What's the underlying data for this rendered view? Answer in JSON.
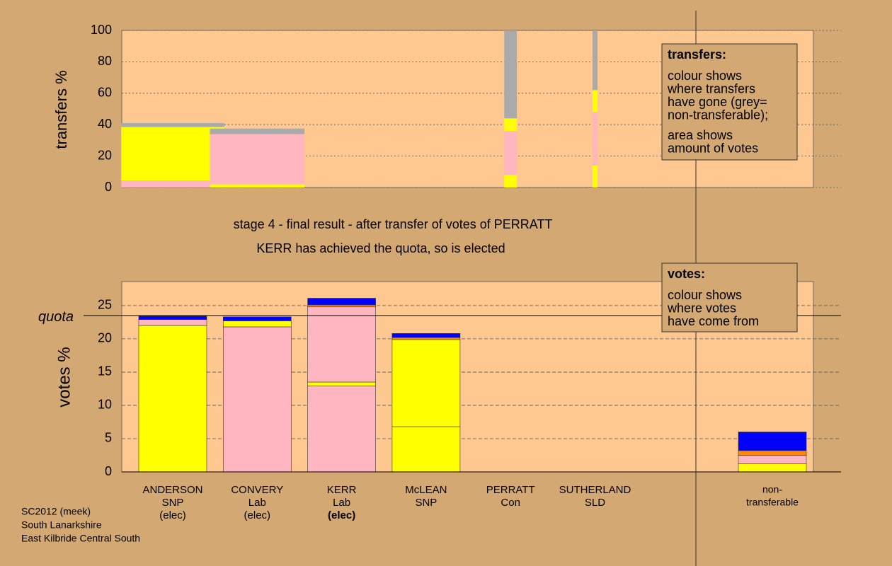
{
  "chart_data": [
    {
      "type": "stacked-bar",
      "ylabel": "transfers %",
      "ylim": [
        0,
        100
      ],
      "yticks": [
        0,
        20,
        40,
        60,
        80,
        100
      ],
      "x": [
        0,
        1,
        4,
        5
      ],
      "widths": [
        1.22,
        1.12,
        0.15,
        0.06
      ],
      "bars": [
        {
          "segments": [
            {
              "color": "#ffb6c1",
              "value": 4.5
            },
            {
              "color": "#ffff00",
              "value": 34
            },
            {
              "color": "#aaaaaa",
              "value": 2.5
            }
          ]
        },
        {
          "segments": [
            {
              "color": "#ffff00",
              "value": 2
            },
            {
              "color": "#ffb6c1",
              "value": 32
            },
            {
              "color": "#aaaaaa",
              "value": 3.5
            }
          ]
        },
        {
          "segments": [
            {
              "color": "#ffff00",
              "value": 8
            },
            {
              "color": "#ffb6c1",
              "value": 28
            },
            {
              "color": "#ffff00",
              "value": 8
            },
            {
              "color": "#aaaaaa",
              "value": 56
            }
          ]
        },
        {
          "segments": [
            {
              "color": "#ffff00",
              "value": 14
            },
            {
              "color": "#ffb6c1",
              "value": 34
            },
            {
              "color": "#ffff00",
              "value": 14
            },
            {
              "color": "#aaaaaa",
              "value": 38
            }
          ]
        }
      ],
      "legend": {
        "title": "transfers:",
        "lines": [
          "colour shows",
          "where transfers",
          "have gone (grey=",
          "non-transferable);"
        ],
        "lines2": [
          "area shows",
          "amount of votes"
        ]
      }
    },
    {
      "type": "stacked-bar",
      "title": "stage 4 - final result - after transfer of votes of PERRATT",
      "subtitle": "KERR has achieved the quota, so is elected",
      "ylabel": "votes %",
      "ylim": [
        0,
        28.6
      ],
      "yticks": [
        0,
        5,
        10,
        15,
        20,
        25
      ],
      "quota": 23.5,
      "quota_label": "quota",
      "categories": [
        [
          "ANDERSON",
          "SNP",
          "(elec)"
        ],
        [
          "CONVERY",
          "Lab",
          "(elec)"
        ],
        [
          "KERR",
          "Lab",
          "(elec)"
        ],
        [
          "McLEAN",
          "SNP"
        ],
        [
          "PERRATT",
          "Con"
        ],
        [
          "SUTHERLAND",
          "SLD"
        ],
        [
          "non-",
          "transferable"
        ]
      ],
      "bars": [
        {
          "segments": [
            {
              "color": "#ffff00",
              "value": 22.0
            },
            {
              "color": "#ffb6c1",
              "value": 0.9
            },
            {
              "color": "#0000ff",
              "value": 0.5
            }
          ]
        },
        {
          "segments": [
            {
              "color": "#ffb6c1",
              "value": 21.8
            },
            {
              "color": "#ffff00",
              "value": 0.9
            },
            {
              "color": "#0000ff",
              "value": 0.6
            }
          ]
        },
        {
          "segments": [
            {
              "color": "#ffb6c1",
              "value": 12.9
            },
            {
              "color": "#ffff00",
              "value": 0.6
            },
            {
              "color": "#ffb6c1",
              "value": 11.3
            },
            {
              "color": "#ff8c00",
              "value": 0.3
            },
            {
              "color": "#0000ff",
              "value": 1.0
            }
          ]
        },
        {
          "segments": [
            {
              "color": "#ffff00",
              "value": 6.8
            },
            {
              "color": "#ffff00",
              "value": 13.1
            },
            {
              "color": "#ff8c00",
              "value": 0.3
            },
            {
              "color": "#0000ff",
              "value": 0.6
            }
          ]
        },
        {
          "segments": [
            {
              "color": "#ffff00",
              "value": 0
            }
          ]
        },
        {
          "segments": [
            {
              "color": "#ffff00",
              "value": 0
            }
          ]
        },
        {
          "segments": [
            {
              "color": "#ffff00",
              "value": 1.2
            },
            {
              "color": "#ffb6c1",
              "value": 1.3
            },
            {
              "color": "#ff8c00",
              "value": 0.7
            },
            {
              "color": "#0000ff",
              "value": 2.8
            }
          ]
        }
      ],
      "legend": {
        "title": "votes:",
        "lines": [
          "colour shows",
          "where votes",
          "have come from"
        ]
      },
      "footer": [
        "SC2012 (meek)",
        "South Lanarkshire",
        "East Kilbride Central South"
      ]
    }
  ]
}
